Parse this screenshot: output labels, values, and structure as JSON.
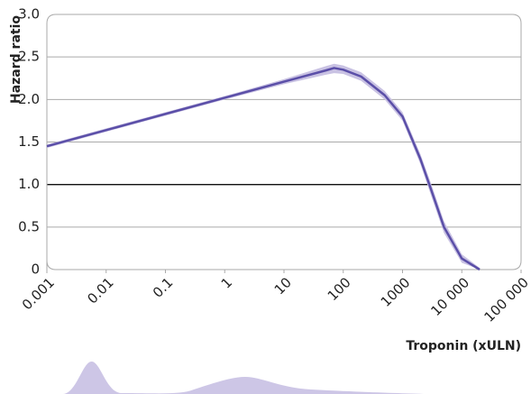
{
  "chart_data": {
    "type": "line",
    "y_label": "Hazard ratio",
    "x_label": "Troponin (xULN)",
    "x": [
      0.001,
      0.01,
      0.1,
      1,
      10,
      50,
      70,
      100,
      200,
      500,
      1000,
      2000,
      3000,
      5000,
      10000,
      20000
    ],
    "values": [
      1.45,
      1.64,
      1.83,
      2.02,
      2.21,
      2.34,
      2.37,
      2.35,
      2.27,
      2.05,
      1.8,
      1.3,
      0.95,
      0.5,
      0.13,
      0
    ],
    "lower": [
      1.43,
      1.62,
      1.81,
      2.0,
      2.18,
      2.29,
      2.31,
      2.3,
      2.22,
      2.0,
      1.75,
      1.24,
      0.88,
      0.43,
      0.08,
      0
    ],
    "upper": [
      1.47,
      1.66,
      1.85,
      2.04,
      2.24,
      2.39,
      2.42,
      2.4,
      2.32,
      2.1,
      1.85,
      1.36,
      1.02,
      0.57,
      0.18,
      0.02
    ],
    "color": "#5b4fa8",
    "band_color": "#c9c2e3",
    "x_log": true,
    "xlim": [
      0.001,
      100000
    ],
    "xticks": [
      0.001,
      0.01,
      0.1,
      1,
      10,
      100,
      1000,
      {
        "value": 10000,
        "label": "10 000"
      },
      {
        "value": 100000,
        "label": "100 000"
      }
    ],
    "ylim": [
      0,
      3
    ],
    "yticks": [
      {
        "value": 3,
        "label": "3.0"
      },
      2.5,
      {
        "value": 2,
        "label": "2.0"
      },
      1.5,
      {
        "value": 1,
        "label": "1.0"
      },
      0.5,
      0
    ],
    "reference_line": 1,
    "grid": true
  }
}
